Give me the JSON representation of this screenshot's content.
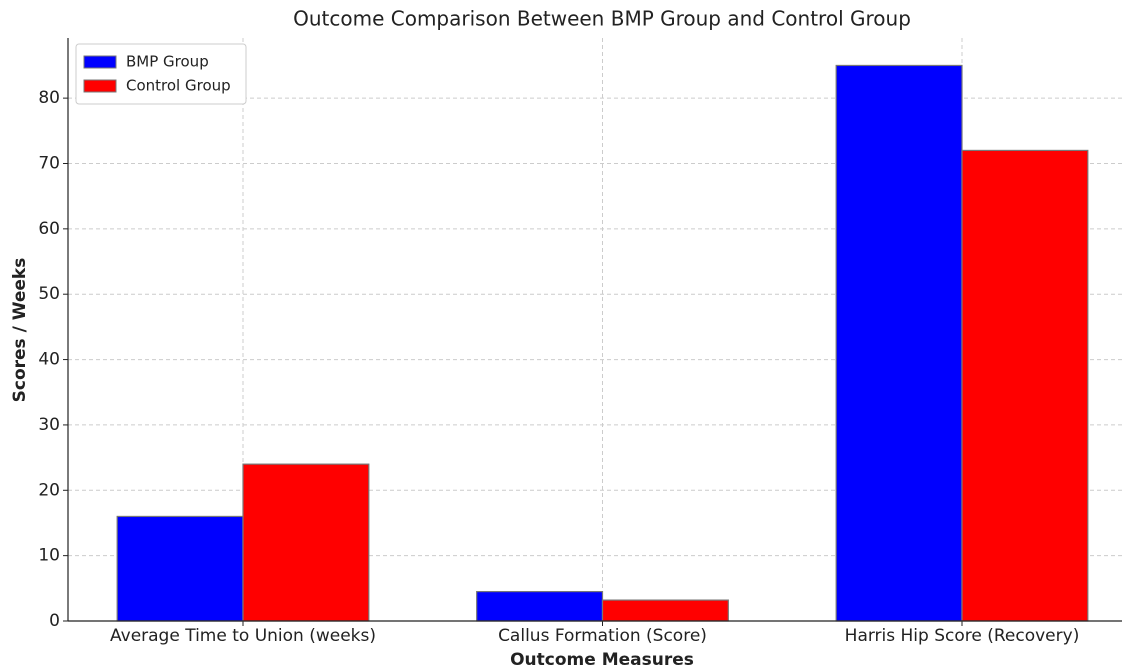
{
  "chart_data": {
    "type": "bar",
    "title": "Outcome Comparison Between BMP Group and Control Group",
    "x_label": "Outcome Measures",
    "y_label": "Scores / Weeks",
    "categories": [
      "Average Time to Union (weeks)",
      "Callus Formation (Score)",
      "Harris Hip Score (Recovery)"
    ],
    "series": [
      {
        "name": "BMP Group",
        "color": "#0000ff",
        "values": [
          16,
          4.5,
          85
        ]
      },
      {
        "name": "Control Group",
        "color": "#ff0000",
        "values": [
          24,
          3.2,
          72
        ]
      }
    ],
    "ylim": [
      0,
      89.2
    ],
    "yticks": [
      0,
      10,
      20,
      30,
      40,
      50,
      60,
      70,
      80
    ],
    "grid": true,
    "legend": "upper-left"
  }
}
